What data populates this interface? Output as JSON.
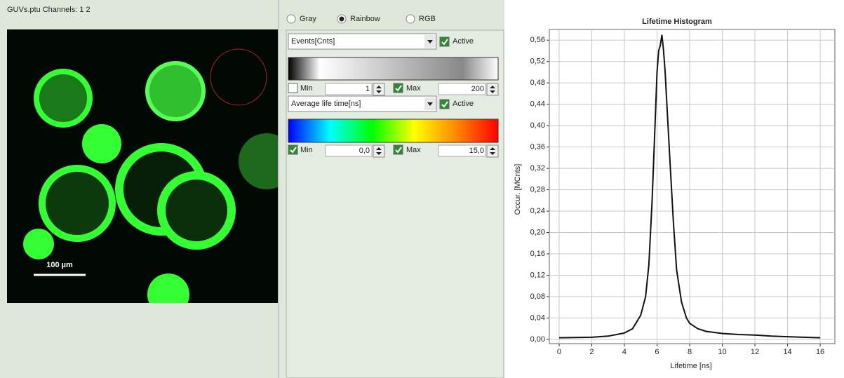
{
  "image_panel": {
    "title": "GUVs.ptu Channels: 1 2",
    "scale_bar": "100 µm"
  },
  "color_mode": {
    "options": [
      "Gray",
      "Rainbow",
      "RGB"
    ],
    "selected": 1
  },
  "intensity": {
    "channel": "Events[Cnts]",
    "active": "Active",
    "active_checked": true,
    "min_label": "Min",
    "min_checked": false,
    "min": "1",
    "max_label": "Max",
    "max_checked": true,
    "max": "200"
  },
  "lifetime": {
    "channel": "Average life time[ns]",
    "active": "Active",
    "active_checked": true,
    "min_label": "Min",
    "min_checked": true,
    "min": "0,0",
    "max_label": "Max",
    "max_checked": true,
    "max": "15,0"
  },
  "chart_data": {
    "type": "line",
    "title": "Lifetime Histogram",
    "x_label": "Lifetime [ns]",
    "y_label": "Occur. [MCnts]",
    "color": "#111111",
    "grid": true,
    "x": [
      0,
      2,
      3,
      4,
      4.5,
      5,
      5.3,
      5.5,
      5.7,
      5.9,
      6.0,
      6.1,
      6.2,
      6.3,
      6.4,
      6.5,
      6.6,
      6.8,
      7.0,
      7.2,
      7.5,
      7.8,
      8.0,
      8.5,
      9,
      10,
      11,
      12,
      13,
      14,
      15,
      16
    ],
    "values": [
      0.003,
      0.004,
      0.006,
      0.012,
      0.02,
      0.045,
      0.08,
      0.14,
      0.26,
      0.42,
      0.5,
      0.54,
      0.55,
      0.57,
      0.54,
      0.5,
      0.44,
      0.33,
      0.22,
      0.13,
      0.07,
      0.04,
      0.03,
      0.02,
      0.015,
      0.011,
      0.009,
      0.008,
      0.006,
      0.005,
      0.004,
      0.003
    ],
    "xlim": [
      -0.6,
      16.9
    ],
    "ylim": [
      -0.008,
      0.58
    ],
    "xticks": [
      0,
      2,
      4,
      6,
      8,
      10,
      12,
      14,
      16
    ],
    "yticks": [
      {
        "value": 0,
        "label": "0,00"
      },
      {
        "value": 0.04,
        "label": "0,04"
      },
      {
        "value": 0.08,
        "label": "0,08"
      },
      {
        "value": 0.12,
        "label": "0,12"
      },
      {
        "value": 0.16,
        "label": "0,16"
      },
      {
        "value": 0.2,
        "label": "0,20"
      },
      {
        "value": 0.24,
        "label": "0,24"
      },
      {
        "value": 0.28,
        "label": "0,28"
      },
      {
        "value": 0.32,
        "label": "0,32"
      },
      {
        "value": 0.36,
        "label": "0,36"
      },
      {
        "value": 0.4,
        "label": "0,40"
      },
      {
        "value": 0.44,
        "label": "0,44"
      },
      {
        "value": 0.48,
        "label": "0,48"
      },
      {
        "value": 0.52,
        "label": "0,52"
      },
      {
        "value": 0.56,
        "label": "0,56"
      }
    ]
  }
}
